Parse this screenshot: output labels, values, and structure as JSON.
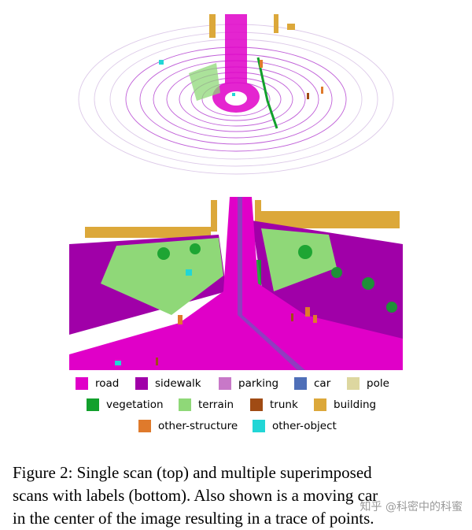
{
  "figure": {
    "legend": [
      [
        {
          "label": "road",
          "color": "#e000c8"
        },
        {
          "label": "sidewalk",
          "color": "#a000a8"
        },
        {
          "label": "parking",
          "color": "#c878c8"
        },
        {
          "label": "car",
          "color": "#4f6fb8"
        },
        {
          "label": "pole",
          "color": "#ddd7a0"
        }
      ],
      [
        {
          "label": "vegetation",
          "color": "#12a02c"
        },
        {
          "label": "terrain",
          "color": "#8fd878"
        },
        {
          "label": "trunk",
          "color": "#a04b14"
        },
        {
          "label": "building",
          "color": "#dca83a"
        }
      ],
      [
        {
          "label": "other-structure",
          "color": "#df7a2c"
        },
        {
          "label": "other-object",
          "color": "#22d6d6"
        }
      ]
    ]
  },
  "caption": {
    "lines": [
      "Figure 2:  Single scan (top) and multiple superimposed",
      "scans with labels (bottom).  Also shown is a moving car",
      "in the center of the image resulting in a trace of points."
    ]
  },
  "watermark": "知乎 @科密中的科蜜"
}
